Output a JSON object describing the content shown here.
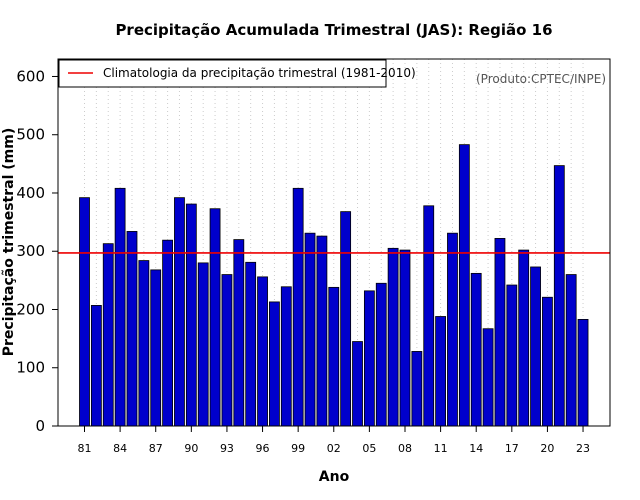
{
  "chart_data": {
    "type": "bar",
    "title": "Precipitação Acumulada Trimestral (JAS): Região 16",
    "xlabel": "Ano",
    "ylabel": "Precipitação trimestral (mm)",
    "ylim": [
      0,
      630
    ],
    "yticks": [
      0,
      100,
      200,
      300,
      400,
      500,
      600
    ],
    "xtick_labels": [
      "81",
      "84",
      "87",
      "90",
      "93",
      "96",
      "99",
      "02",
      "05",
      "08",
      "11",
      "14",
      "17",
      "20",
      "23"
    ],
    "xtick_years": [
      1981,
      1984,
      1987,
      1990,
      1993,
      1996,
      1999,
      2002,
      2005,
      2008,
      2011,
      2014,
      2017,
      2020,
      2023
    ],
    "categories": [
      1981,
      1982,
      1983,
      1984,
      1985,
      1986,
      1987,
      1988,
      1989,
      1990,
      1991,
      1992,
      1993,
      1994,
      1995,
      1996,
      1997,
      1998,
      1999,
      2000,
      2001,
      2002,
      2003,
      2004,
      2005,
      2006,
      2007,
      2008,
      2009,
      2010,
      2011,
      2012,
      2013,
      2014,
      2015,
      2016,
      2017,
      2018,
      2019,
      2020,
      2021,
      2022,
      2023
    ],
    "values": [
      392,
      207,
      313,
      408,
      334,
      284,
      268,
      319,
      392,
      381,
      280,
      373,
      260,
      320,
      281,
      256,
      213,
      239,
      408,
      331,
      326,
      238,
      368,
      145,
      232,
      245,
      305,
      302,
      128,
      378,
      188,
      331,
      483,
      262,
      167,
      322,
      242,
      302,
      273,
      221,
      447,
      260,
      183
    ],
    "climatology": 297,
    "legend": {
      "label": "Climatologia da precipitação trimestral (1981-2010)",
      "position": "top-left"
    },
    "source_note": "(Produto:CPTEC/INPE)",
    "grid": "vertical-dotted",
    "colors": {
      "bar_fill": "#0000cc",
      "bar_stroke": "#000000",
      "climatology_line": "#ee0000",
      "grid": "#cccccc"
    }
  }
}
